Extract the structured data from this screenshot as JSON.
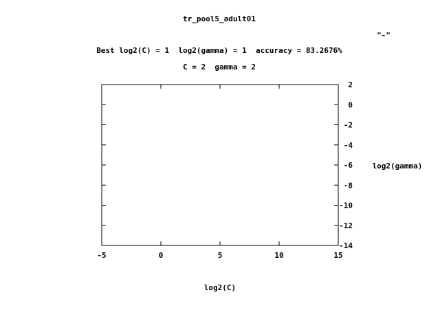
{
  "chart_data": {
    "type": "contour",
    "title": "tr_pool5_adult01",
    "subtitle_line1": "Best log2(C) = 1  log2(gamma) = 1  accuracy = 83.2676%",
    "subtitle_line2": "C = 2  gamma = 2",
    "legend_label": "\"-\"",
    "legend_position": "top-right",
    "xlabel": "log2(C)",
    "ylabel": "log2(gamma)",
    "xlim": [
      -5,
      15
    ],
    "ylim": [
      2,
      -14
    ],
    "x_ticks": [
      -5,
      0,
      5,
      10,
      15
    ],
    "x_tick_labels": [
      "-5",
      "0",
      "5",
      "10",
      "15"
    ],
    "y_ticks": [
      -14,
      -12,
      -10,
      -8,
      -6,
      -4,
      -2,
      0,
      2
    ],
    "y_tick_labels": [
      "-14",
      "-12",
      "-10",
      "-8",
      "-6",
      "-4",
      "-2",
      "0",
      "2"
    ],
    "y_axis_side": "right",
    "series": [],
    "grid": false,
    "color": "#000000"
  }
}
